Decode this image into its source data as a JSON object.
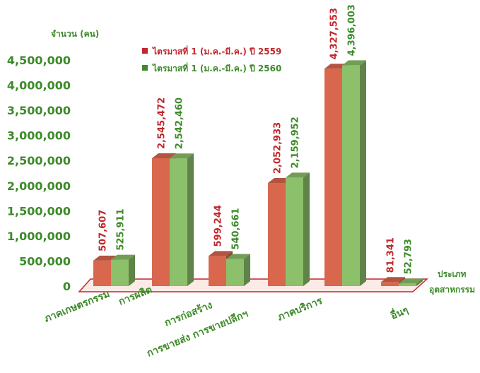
{
  "chart_data": {
    "type": "bar",
    "title": "",
    "ylabel": "จำนวน (คน)",
    "xlabel": [
      "ประเภท",
      "อุตสาหกรรม"
    ],
    "ylim": [
      0,
      4500000
    ],
    "yticks": [
      "0",
      "500,000",
      "1,000,000",
      "1,500,000",
      "2,000,000",
      "2,500,000",
      "3,000,000",
      "3,500,000",
      "4,000,000",
      "4,500,000"
    ],
    "categories": [
      "ภาคเกษตรกรรม",
      "การผลิต",
      "การก่อสร้าง",
      "การขายส่ง การขายปลีกฯ",
      "ภาคบริการ",
      "อื่นๆ"
    ],
    "series": [
      {
        "name": "ไตรมาสที่ 1 (ม.ค.-มี.ค.) ปี 2559",
        "color": "#d9674e",
        "values": [
          507607,
          2545472,
          599244,
          2052933,
          4327553,
          81341
        ],
        "labels": [
          "507,607",
          "2,545,472",
          "599,244",
          "2,052,933",
          "4,327,553",
          "81,341"
        ]
      },
      {
        "name": "ไตรมาสที่ 1 (ม.ค.-มี.ค.) ปี 2560",
        "color": "#8cc06a",
        "values": [
          525911,
          2542460,
          540661,
          2159952,
          4396003,
          52793
        ],
        "labels": [
          "525,911",
          "2,542,460",
          "540,661",
          "2,159,952",
          "4,396,003",
          "52,793"
        ]
      }
    ],
    "legend_position": "top-center",
    "grid": false,
    "colors": {
      "axis_text": "#3d8b2a",
      "label_red": "#c0282c",
      "label_green": "#3d8b2a",
      "baseline": "#c0282c"
    }
  }
}
